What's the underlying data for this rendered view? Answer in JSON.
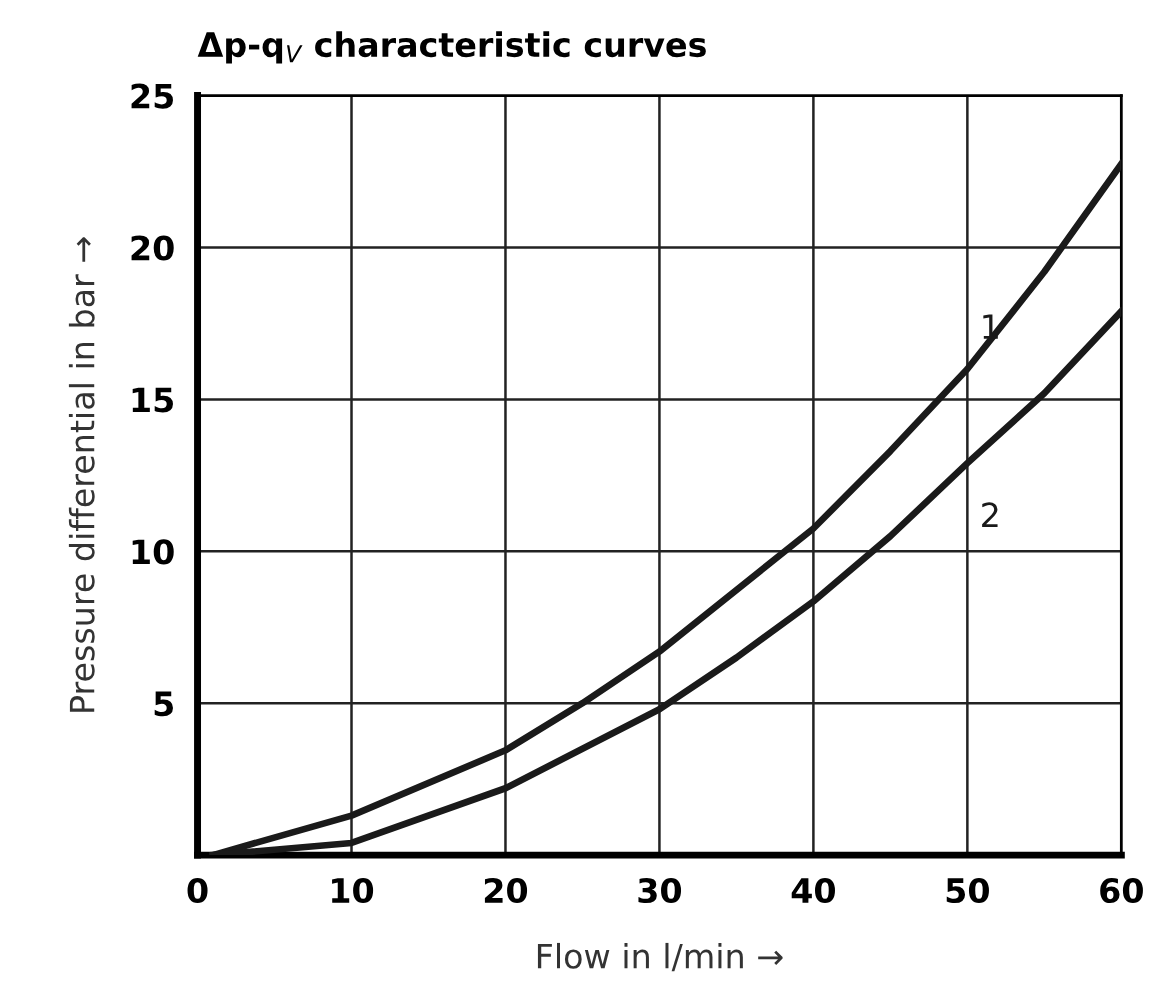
{
  "chart_data": {
    "type": "line",
    "title": "Δp-q$_{V}$ characteristic curves",
    "xlabel": "Flow in l/min →",
    "ylabel": "Pressure differential in bar →",
    "xlim": [
      0,
      60
    ],
    "ylim": [
      0,
      25
    ],
    "xticks": [
      0,
      10,
      20,
      30,
      40,
      50,
      60
    ],
    "yticks": [
      {
        "value": 0,
        "label": null
      },
      5,
      10,
      15,
      20,
      25
    ],
    "grid": true,
    "legend": false,
    "marker": "none",
    "line_style": "solid",
    "series": [
      {
        "name": "1",
        "color": "#1a1a1a",
        "x": [
          1,
          10,
          20,
          25,
          30,
          40,
          45,
          50,
          55,
          60
        ],
        "values": [
          0,
          1.3,
          3.45,
          5.0,
          6.7,
          10.75,
          13.3,
          16.0,
          19.2,
          22.75
        ]
      },
      {
        "name": "2",
        "color": "#1a1a1a",
        "x": [
          1,
          10,
          20,
          30,
          35,
          40,
          45,
          50,
          55,
          60
        ],
        "values": [
          0,
          0.4,
          2.2,
          4.8,
          6.5,
          8.35,
          10.5,
          12.9,
          15.2,
          17.9
        ]
      }
    ]
  }
}
